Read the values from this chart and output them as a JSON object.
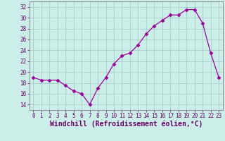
{
  "x": [
    0,
    1,
    2,
    3,
    4,
    5,
    6,
    7,
    8,
    9,
    10,
    11,
    12,
    13,
    14,
    15,
    16,
    17,
    18,
    19,
    20,
    21,
    22,
    23
  ],
  "y": [
    19.0,
    18.5,
    18.5,
    18.5,
    17.5,
    16.5,
    16.0,
    14.0,
    17.0,
    19.0,
    21.5,
    23.0,
    23.5,
    25.0,
    27.0,
    28.5,
    29.5,
    30.5,
    30.5,
    31.5,
    31.5,
    29.0,
    23.5,
    19.0
  ],
  "line_color": "#990099",
  "marker": "D",
  "marker_size": 2.5,
  "background_color": "#cceee8",
  "grid_color": "#aacccc",
  "xlabel": "Windchill (Refroidissement éolien,°C)",
  "xlabel_fontsize": 7,
  "ylim": [
    13,
    33
  ],
  "xlim": [
    -0.5,
    23.5
  ],
  "yticks": [
    14,
    16,
    18,
    20,
    22,
    24,
    26,
    28,
    30,
    32
  ],
  "xticks": [
    0,
    1,
    2,
    3,
    4,
    5,
    6,
    7,
    8,
    9,
    10,
    11,
    12,
    13,
    14,
    15,
    16,
    17,
    18,
    19,
    20,
    21,
    22,
    23
  ],
  "tick_fontsize": 5.5,
  "spine_color": "#888888"
}
